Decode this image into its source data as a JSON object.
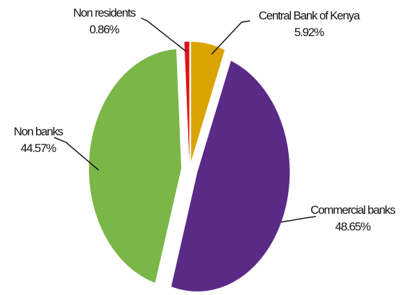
{
  "chart_data": {
    "type": "pie",
    "categories": [
      "Central Bank of Kenya",
      "Commercial banks",
      "Non banks",
      "Non residents"
    ],
    "values": [
      5.92,
      48.65,
      44.57,
      0.86
    ],
    "value_labels": [
      "5.92%",
      "48.65%",
      "44.57%",
      "0.86%"
    ],
    "colors": [
      "#d9a400",
      "#5b2a86",
      "#7ab648",
      "#e0121a"
    ]
  }
}
